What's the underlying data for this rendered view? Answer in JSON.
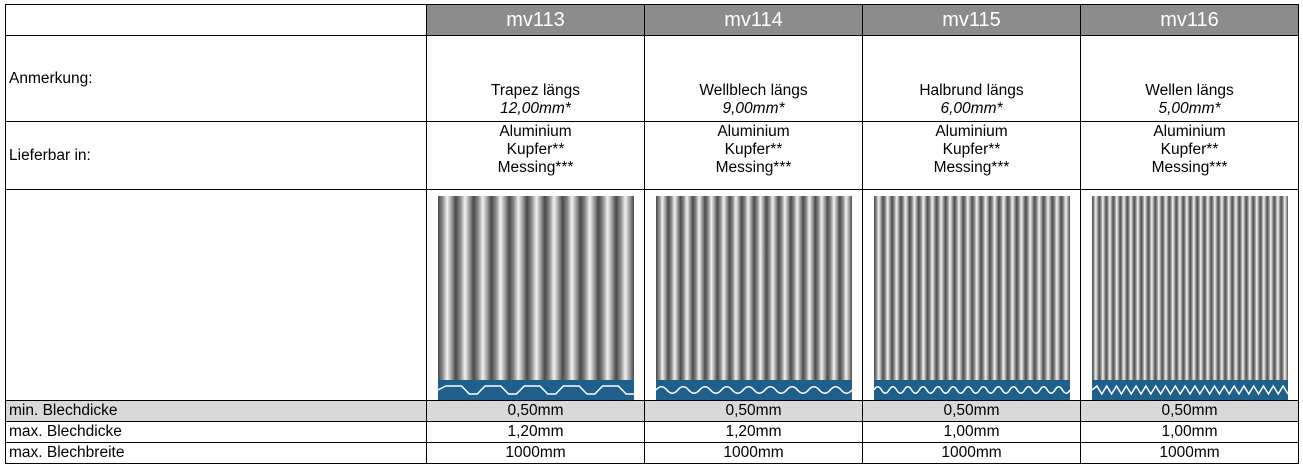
{
  "header": {
    "products": [
      "mv113",
      "mv114",
      "mv115",
      "mv116"
    ],
    "header_bg": "#8c8c8c"
  },
  "rows": {
    "note": {
      "label": "Anmerkung:",
      "values": [
        {
          "name": "Trapez längs",
          "size": "12,00mm*"
        },
        {
          "name": "Wellblech längs",
          "size": "9,00mm*"
        },
        {
          "name": "Halbrund längs",
          "size": "6,00mm*"
        },
        {
          "name": "Wellen längs",
          "size": "5,00mm*"
        }
      ]
    },
    "availability": {
      "label": "Lieferbar in:",
      "materials": [
        "Aluminium",
        "Kupfer**",
        "Messing***"
      ]
    },
    "images": {
      "alt": [
        "mv113",
        "mv114",
        "mv115",
        "mv116"
      ],
      "profile_bar_color": "#1f5f8b"
    },
    "min_thickness": {
      "label": "min. Blechdicke",
      "values": [
        "0,50mm",
        "0,50mm",
        "0,50mm",
        "0,50mm"
      ]
    },
    "max_thickness": {
      "label": "max. Blechdicke",
      "values": [
        "1,20mm",
        "1,20mm",
        "1,00mm",
        "1,00mm"
      ]
    },
    "max_width": {
      "label": "max. Blechbreite",
      "values": [
        "1000mm",
        "1000mm",
        "1000mm",
        "1000mm"
      ]
    }
  }
}
